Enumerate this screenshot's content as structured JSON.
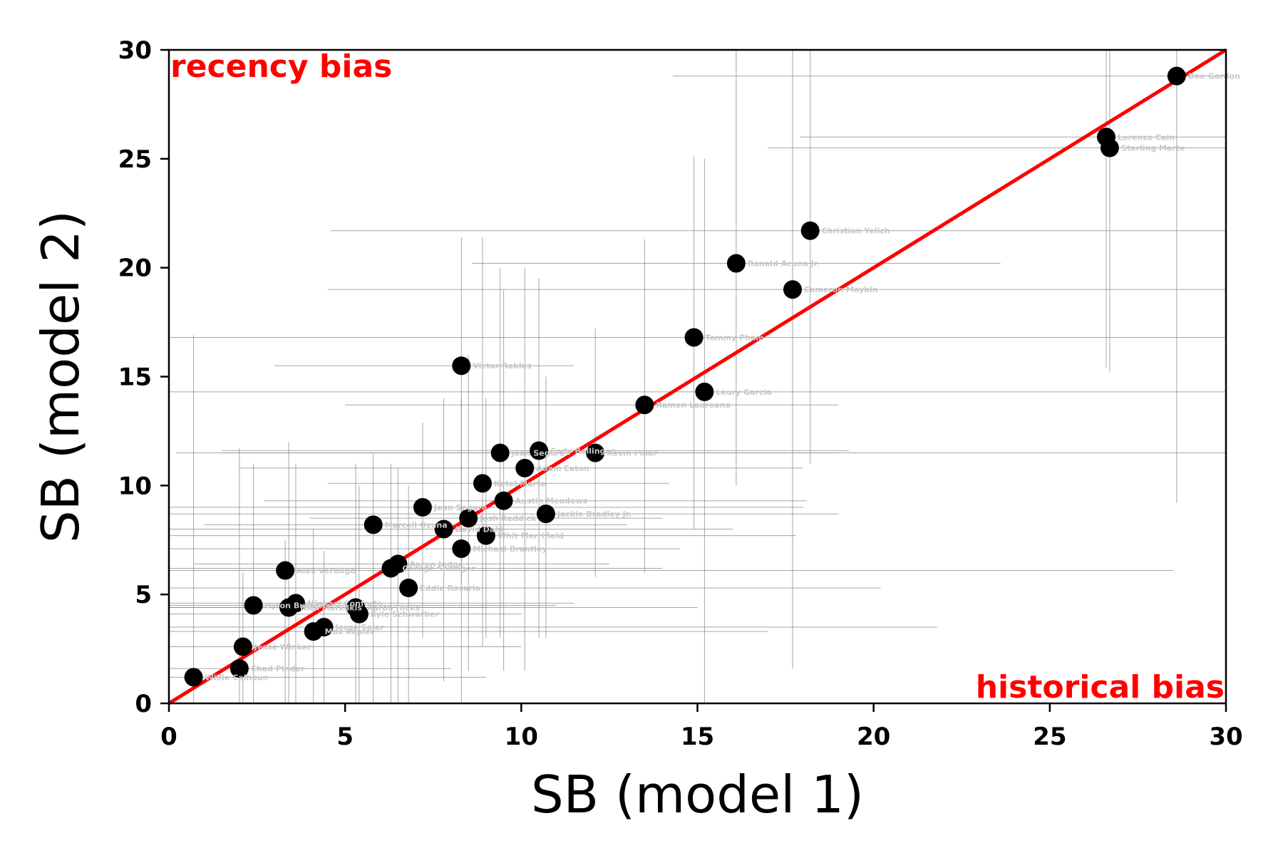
{
  "chart_data": {
    "type": "scatter",
    "xlabel": "SB (model 1)",
    "ylabel": "SB (model 2)",
    "xlim": [
      0,
      30
    ],
    "ylim": [
      0,
      30
    ],
    "xticks": [
      0,
      5,
      10,
      15,
      20,
      25,
      30
    ],
    "yticks": [
      0,
      5,
      10,
      15,
      20,
      25,
      30
    ],
    "grid": false,
    "reference_line": {
      "x": [
        0,
        30
      ],
      "y": [
        0,
        30
      ],
      "color": "#ff0000"
    },
    "annotations": [
      {
        "text": "recency bias",
        "position": "top-left",
        "color": "#ff0000"
      },
      {
        "text": "historical bias",
        "position": "bottom-right",
        "color": "#ff0000"
      }
    ],
    "points": [
      {
        "name": "Dee Gordon",
        "x": 28.6,
        "y": 28.8,
        "xerr": [
          14.3,
          30.0
        ],
        "yerr": [
          9.2,
          30.0
        ]
      },
      {
        "name": "Lorenzo Cain",
        "x": 26.6,
        "y": 26.0,
        "xerr": [
          17.9,
          30.0
        ],
        "yerr": [
          15.4,
          30.0
        ]
      },
      {
        "name": "Starling Marte",
        "x": 26.7,
        "y": 25.5,
        "xerr": [
          17.0,
          30.0
        ],
        "yerr": [
          15.2,
          30.0
        ]
      },
      {
        "name": "Christian Yelich",
        "x": 18.2,
        "y": 21.7,
        "xerr": [
          4.6,
          30.0
        ],
        "yerr": [
          11.0,
          30.0
        ]
      },
      {
        "name": "Ronald Acuna Jr.",
        "x": 16.1,
        "y": 20.2,
        "xerr": [
          8.6,
          23.6
        ],
        "yerr": [
          10.0,
          30.0
        ]
      },
      {
        "name": "Cameron Maybin",
        "x": 17.7,
        "y": 19.0,
        "xerr": [
          4.5,
          30.0
        ],
        "yerr": [
          1.6,
          30.0
        ]
      },
      {
        "name": "Tommy Pham",
        "x": 14.9,
        "y": 16.8,
        "xerr": [
          0.0,
          30.0
        ],
        "yerr": [
          8.0,
          25.1
        ]
      },
      {
        "name": "Victor Robles",
        "x": 8.3,
        "y": 15.5,
        "xerr": [
          3.0,
          11.5
        ],
        "yerr": [
          5.5,
          21.4
        ]
      },
      {
        "name": "Leury Garcia",
        "x": 15.2,
        "y": 14.3,
        "xerr": [
          0.0,
          30.0
        ],
        "yerr": [
          0.0,
          25.0
        ]
      },
      {
        "name": "Ramon Laureano",
        "x": 13.5,
        "y": 13.7,
        "xerr": [
          5.0,
          19.0
        ],
        "yerr": [
          6.0,
          21.3
        ]
      },
      {
        "name": "Cody Bellinger",
        "x": 10.5,
        "y": 11.6,
        "xerr": [
          1.5,
          19.3
        ],
        "yerr": [
          3.0,
          19.5
        ]
      },
      {
        "name": "Kevin Pillar",
        "x": 12.1,
        "y": 11.5,
        "xerr": [
          0.2,
          30.0
        ],
        "yerr": [
          5.8,
          17.2
        ]
      },
      {
        "name": "Jean Segura",
        "x": 9.4,
        "y": 11.5,
        "xerr": [
          1.5,
          19.0
        ],
        "yerr": [
          3.0,
          20.0
        ]
      },
      {
        "name": "Adam Eaton",
        "x": 10.1,
        "y": 10.8,
        "xerr": [
          2.0,
          18.0
        ],
        "yerr": [
          1.5,
          20.0
        ]
      },
      {
        "name": "Ketel Marte",
        "x": 8.9,
        "y": 10.1,
        "xerr": [
          4.5,
          14.2
        ],
        "yerr": [
          2.6,
          21.4
        ]
      },
      {
        "name": "Austin Meadows",
        "x": 9.5,
        "y": 9.3,
        "xerr": [
          2.7,
          18.1
        ],
        "yerr": [
          1.5,
          19.0
        ]
      },
      {
        "name": "Jean Segura",
        "x": 7.2,
        "y": 9.0,
        "xerr": [
          0.0,
          18.0
        ],
        "yerr": [
          3.0,
          12.9
        ]
      },
      {
        "name": "Jackie Bradley Jr.",
        "x": 10.7,
        "y": 8.7,
        "xerr": [
          0.0,
          19.0
        ],
        "yerr": [
          3.0,
          15.0
        ]
      },
      {
        "name": "Josh Reddick",
        "x": 8.5,
        "y": 8.5,
        "xerr": [
          4.0,
          14.0
        ],
        "yerr": [
          1.5,
          16.0
        ]
      },
      {
        "name": "Marcell Ozuna",
        "x": 5.8,
        "y": 8.2,
        "xerr": [
          1.0,
          13.0
        ],
        "yerr": [
          0.0,
          11.5
        ]
      },
      {
        "name": "David Dahl",
        "x": 7.8,
        "y": 8.0,
        "xerr": [
          0.0,
          16.0
        ],
        "yerr": [
          1.0,
          14.0
        ]
      },
      {
        "name": "Whit Merrifield",
        "x": 9.0,
        "y": 7.7,
        "xerr": [
          0.0,
          17.8
        ],
        "yerr": [
          3.0,
          14.0
        ]
      },
      {
        "name": "Michael Brantley",
        "x": 8.3,
        "y": 7.1,
        "xerr": [
          0.0,
          14.5
        ],
        "yerr": [
          0.0,
          14.0
        ]
      },
      {
        "name": "Aaron Judge",
        "x": 6.5,
        "y": 6.4,
        "xerr": [
          0.7,
          12.5
        ],
        "yerr": [
          0.0,
          10.8
        ]
      },
      {
        "name": "George Springer",
        "x": 6.3,
        "y": 6.2,
        "xerr": [
          0.0,
          14.0
        ],
        "yerr": [
          0.0,
          11.0
        ]
      },
      {
        "name": "Alex Verdugo",
        "x": 3.3,
        "y": 6.1,
        "xerr": [
          0.0,
          28.5
        ],
        "yerr": [
          0.0,
          7.5
        ]
      },
      {
        "name": "Eddie Rosario",
        "x": 6.8,
        "y": 5.3,
        "xerr": [
          0.0,
          20.2
        ],
        "yerr": [
          0.0,
          10.0
        ]
      },
      {
        "name": "Byron Buxton",
        "x": 2.4,
        "y": 4.5,
        "xerr": [
          0.0,
          11.0
        ],
        "yerr": [
          0.0,
          11.0
        ]
      },
      {
        "name": "Michael Conforto",
        "x": 3.6,
        "y": 4.6,
        "xerr": [
          0.0,
          11.5
        ],
        "yerr": [
          0.0,
          11.0
        ]
      },
      {
        "name": "Nick Markakis",
        "x": 3.4,
        "y": 4.4,
        "xerr": [
          0.0,
          9.0
        ],
        "yerr": [
          0.0,
          12.0
        ]
      },
      {
        "name": "Aaron Hicks",
        "x": 5.3,
        "y": 4.4,
        "xerr": [
          0.0,
          15.0
        ],
        "yerr": [
          0.0,
          11.0
        ]
      },
      {
        "name": "Kyle Schwarber",
        "x": 5.4,
        "y": 4.1,
        "xerr": [
          0.0,
          10.0
        ],
        "yerr": [
          0.0,
          10.0
        ]
      },
      {
        "name": "Jorge Soler",
        "x": 4.4,
        "y": 3.5,
        "xerr": [
          0.0,
          21.8
        ],
        "yerr": [
          0.0,
          7.0
        ]
      },
      {
        "name": "Max Kepler",
        "x": 4.1,
        "y": 3.3,
        "xerr": [
          0.0,
          17.0
        ],
        "yerr": [
          0.0,
          8.0
        ]
      },
      {
        "name": "Jesse Winker",
        "x": 2.1,
        "y": 2.6,
        "xerr": [
          0.0,
          10.0
        ],
        "yerr": [
          0.0,
          6.0
        ]
      },
      {
        "name": "Chad Pinder",
        "x": 2.0,
        "y": 1.6,
        "xerr": [
          0.0,
          8.0
        ],
        "yerr": [
          0.0,
          11.7
        ]
      },
      {
        "name": "Willie Calhoun",
        "x": 0.7,
        "y": 1.2,
        "xerr": [
          0.0,
          9.0
        ],
        "yerr": [
          0.0,
          16.9
        ]
      }
    ]
  }
}
